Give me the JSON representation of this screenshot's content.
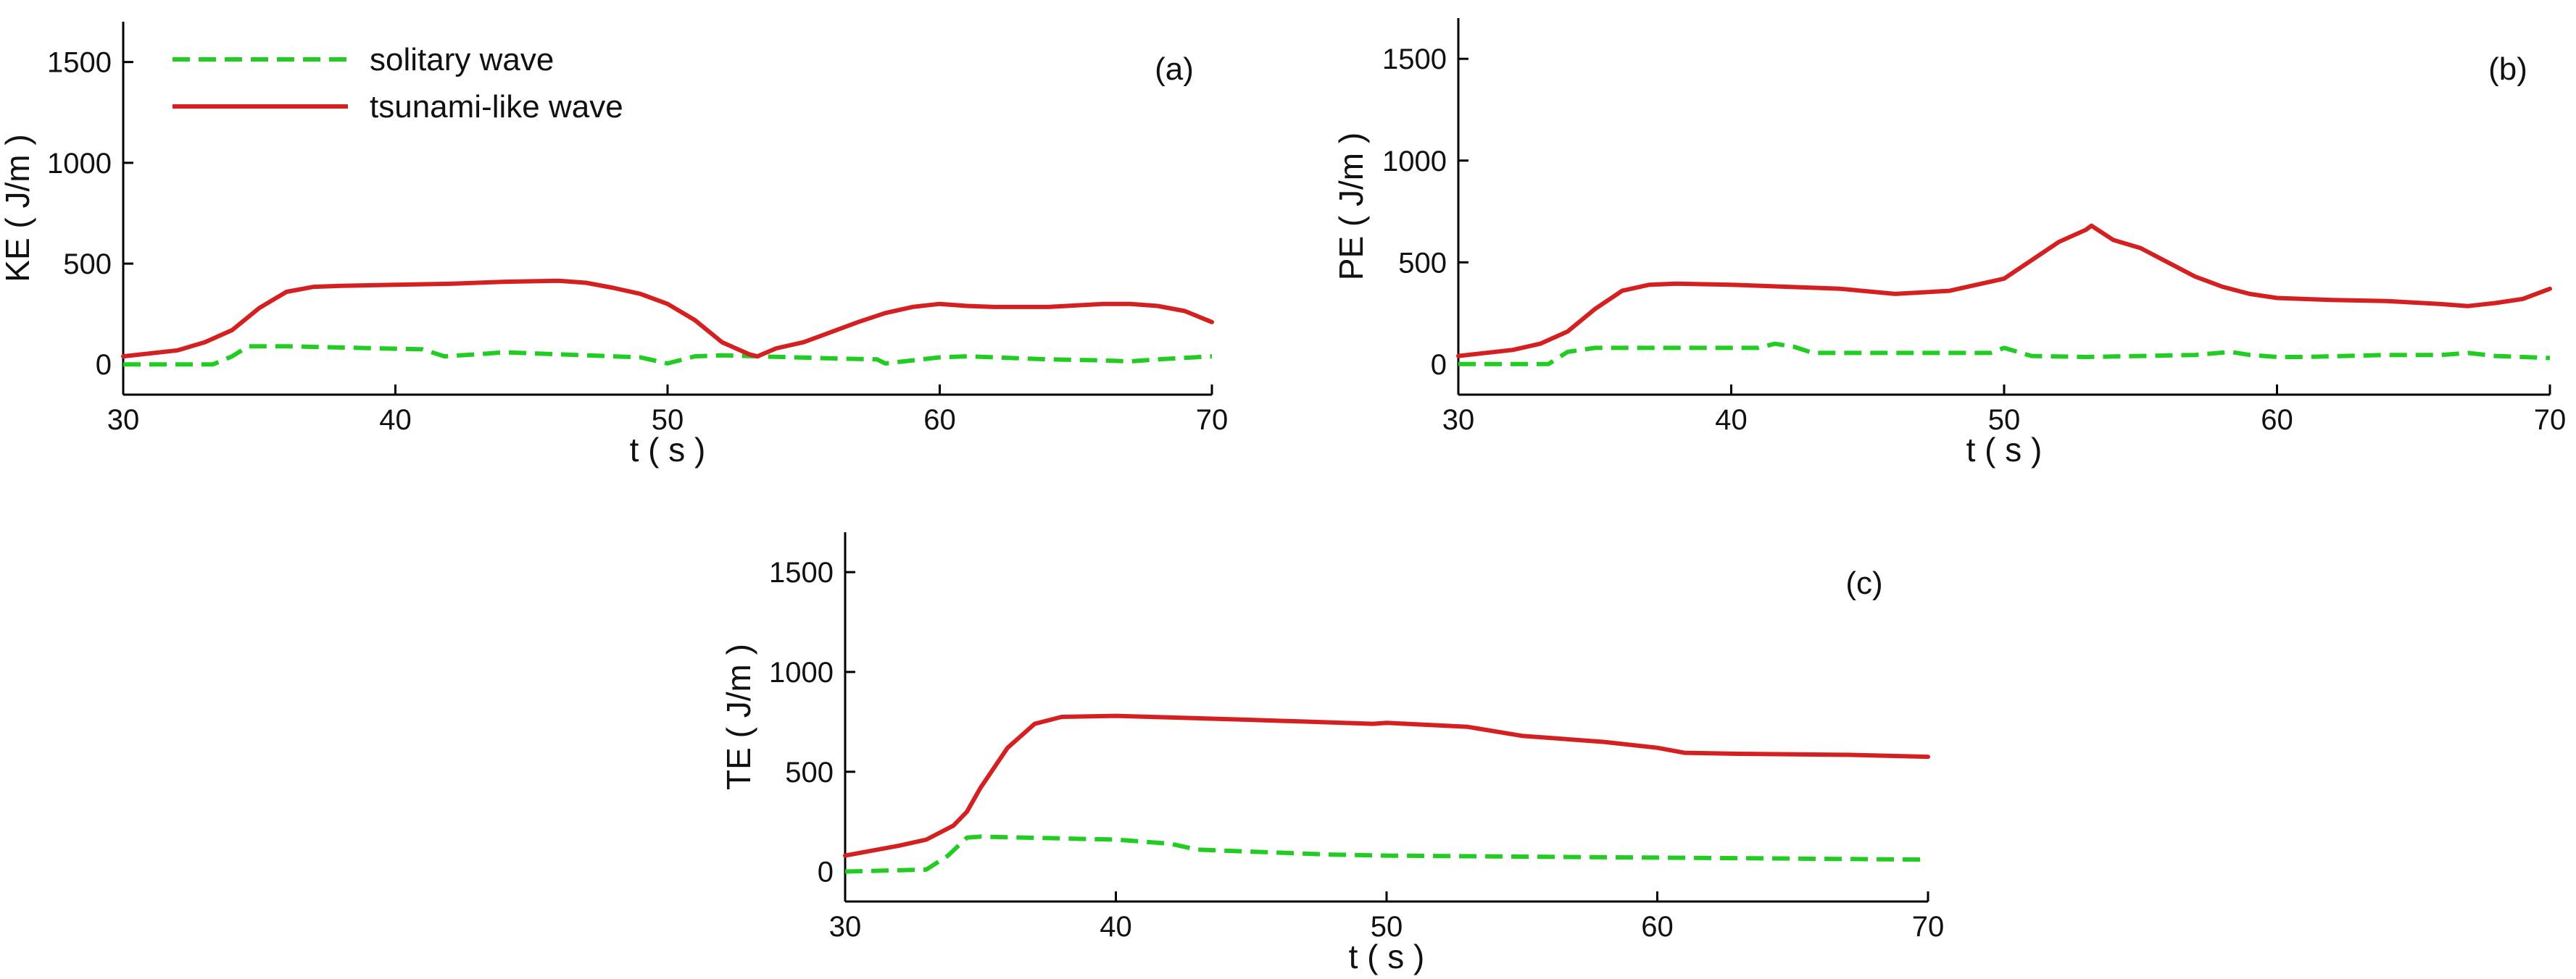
{
  "figure": {
    "legend": [
      {
        "label": "solitary wave",
        "series": "solitary"
      },
      {
        "label": "tsunami-like wave",
        "series": "tsunami"
      }
    ]
  },
  "colors": {
    "solitary": "#22cc22",
    "tsunami": "#d42020"
  },
  "chart_data": [
    {
      "type": "line",
      "panel_label": "(a)",
      "xlabel": "t ( s )",
      "ylabel": "KE ( J/m )",
      "xlim": [
        30,
        70
      ],
      "ylim": [
        -150,
        1700
      ],
      "xticks": [
        30,
        40,
        50,
        60,
        70
      ],
      "yticks": [
        0,
        500,
        1000,
        1500
      ],
      "series": [
        {
          "name": "solitary wave",
          "style": "dashed",
          "x": [
            30,
            32,
            33.3,
            34,
            34.6,
            36,
            41,
            41.8,
            43,
            44,
            47,
            49,
            50,
            51,
            52,
            56,
            57.7,
            58,
            60,
            61,
            64,
            66,
            67,
            68,
            70
          ],
          "y": [
            0,
            0,
            0,
            40,
            90,
            90,
            75,
            40,
            50,
            60,
            45,
            35,
            5,
            40,
            45,
            30,
            25,
            5,
            35,
            40,
            25,
            20,
            15,
            25,
            40
          ]
        },
        {
          "name": "tsunami-like wave",
          "style": "solid",
          "x": [
            30,
            32,
            33,
            34,
            35,
            36,
            37,
            38,
            40,
            42,
            44,
            46,
            47,
            48,
            49,
            50,
            51,
            52,
            53,
            53.3,
            54,
            55,
            56,
            57,
            58,
            59,
            60,
            61,
            62,
            64,
            66,
            67,
            68,
            69,
            70
          ],
          "y": [
            40,
            70,
            110,
            170,
            280,
            360,
            385,
            390,
            395,
            400,
            410,
            415,
            405,
            380,
            350,
            300,
            220,
            110,
            50,
            40,
            80,
            110,
            160,
            210,
            255,
            285,
            300,
            290,
            285,
            285,
            300,
            300,
            290,
            265,
            210
          ]
        }
      ]
    },
    {
      "type": "line",
      "panel_label": "(b)",
      "xlabel": "t ( s )",
      "ylabel": "PE ( J/m )",
      "xlim": [
        30,
        70
      ],
      "ylim": [
        -150,
        1700
      ],
      "xticks": [
        30,
        40,
        50,
        60,
        70
      ],
      "yticks": [
        0,
        500,
        1000,
        1500
      ],
      "series": [
        {
          "name": "solitary wave",
          "style": "dashed",
          "x": [
            30,
            33.3,
            34,
            35,
            41,
            41.6,
            42.3,
            43,
            47,
            49.5,
            50,
            51,
            53,
            57,
            58.3,
            59,
            60,
            61,
            64,
            66,
            67,
            68,
            70
          ],
          "y": [
            0,
            0,
            60,
            80,
            80,
            100,
            85,
            55,
            55,
            55,
            80,
            40,
            35,
            45,
            60,
            45,
            35,
            35,
            45,
            45,
            55,
            40,
            30
          ]
        },
        {
          "name": "tsunami-like wave",
          "style": "solid",
          "x": [
            30,
            32,
            33,
            34,
            35,
            36,
            37,
            38,
            40,
            42,
            44,
            46,
            48,
            49,
            50,
            51,
            52,
            53,
            53.2,
            54,
            55,
            56,
            57,
            58,
            59,
            60,
            62,
            64,
            66,
            67,
            68,
            69,
            70
          ],
          "y": [
            40,
            70,
            100,
            160,
            270,
            360,
            390,
            395,
            390,
            380,
            370,
            345,
            360,
            390,
            420,
            510,
            600,
            660,
            680,
            610,
            570,
            500,
            430,
            380,
            345,
            325,
            315,
            310,
            295,
            285,
            300,
            320,
            370
          ]
        }
      ]
    },
    {
      "type": "line",
      "panel_label": "(c)",
      "xlabel": "t ( s )",
      "ylabel": "TE ( J/m )",
      "xlim": [
        30,
        70
      ],
      "ylim": [
        -150,
        1700
      ],
      "xticks": [
        30,
        40,
        50,
        60,
        70
      ],
      "yticks": [
        0,
        500,
        1000,
        1500
      ],
      "series": [
        {
          "name": "solitary wave",
          "style": "dashed",
          "x": [
            30,
            33,
            33.8,
            34.5,
            35,
            40,
            42,
            43,
            45,
            48,
            50,
            55,
            60,
            65,
            70
          ],
          "y": [
            0,
            10,
            80,
            170,
            175,
            160,
            140,
            110,
            100,
            85,
            80,
            75,
            70,
            65,
            60
          ]
        },
        {
          "name": "tsunami-like wave",
          "style": "solid",
          "x": [
            30,
            32,
            33,
            34,
            34.5,
            35,
            36,
            37,
            38,
            40,
            45,
            49.5,
            50,
            53,
            55,
            58,
            60,
            61,
            63,
            67,
            70
          ],
          "y": [
            80,
            130,
            160,
            230,
            300,
            420,
            620,
            740,
            775,
            780,
            760,
            740,
            745,
            725,
            680,
            650,
            620,
            595,
            590,
            585,
            575
          ]
        }
      ]
    }
  ]
}
